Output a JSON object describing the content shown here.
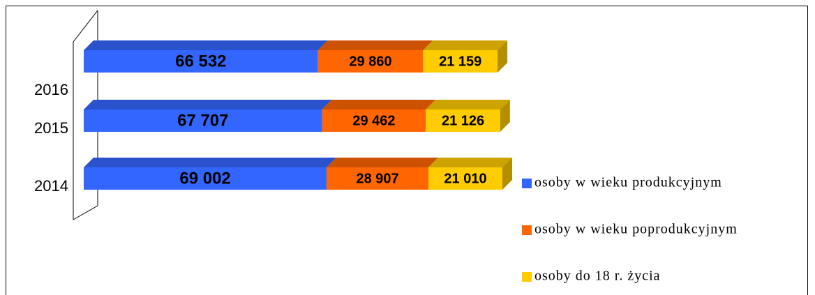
{
  "chart_data": {
    "type": "bar",
    "orientation": "horizontal",
    "stacked": true,
    "categories": [
      "2016",
      "2015",
      "2014"
    ],
    "series": [
      {
        "name": "osoby w wieku produkcyjnym",
        "color": "#3366ff",
        "values": [
          66532,
          67707,
          69002
        ],
        "value_labels": [
          "66 532",
          "67 707",
          "69 002"
        ]
      },
      {
        "name": "osoby w wieku poprodukcyjnym",
        "color": "#ff6600",
        "values": [
          29860,
          29462,
          28907
        ],
        "value_labels": [
          "29 860",
          "29 462",
          "28 907"
        ]
      },
      {
        "name": "osoby do 18 r. życia",
        "color": "#ffcc00",
        "values": [
          21159,
          21126,
          21010
        ],
        "value_labels": [
          "21 159",
          "21 126",
          "21 010"
        ]
      }
    ],
    "legend": "right"
  }
}
